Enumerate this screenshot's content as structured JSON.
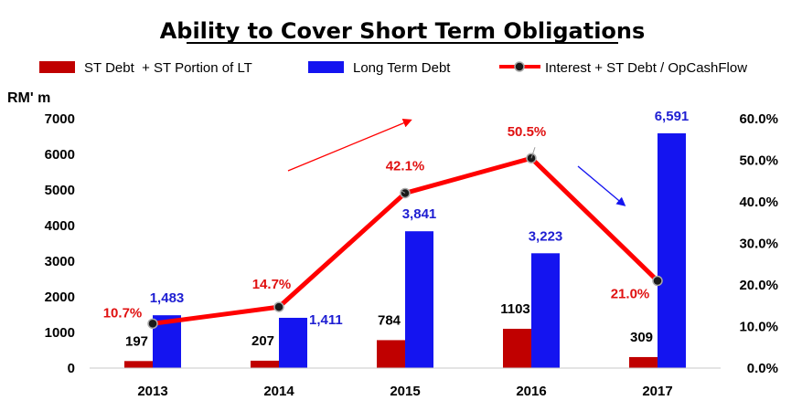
{
  "chart_data": {
    "type": "bar",
    "title": "Ability to Cover Short Term Obligations",
    "ylabel": "RM' m",
    "categories": [
      "2013",
      "2014",
      "2015",
      "2016",
      "2017"
    ],
    "ylim": [
      0,
      7000
    ],
    "yticks": [
      "0",
      "1000",
      "2000",
      "3000",
      "4000",
      "5000",
      "6000",
      "7000"
    ],
    "y2lim": [
      0,
      60
    ],
    "y2ticks": [
      "0.0%",
      "10.0%",
      "20.0%",
      "30.0%",
      "40.0%",
      "50.0%",
      "60.0%"
    ],
    "grid": false,
    "legend_position": "top",
    "series": [
      {
        "name": "ST Debt  + ST Portion of LT",
        "type": "bar",
        "color": "#C00000",
        "values": [
          197,
          207,
          784,
          1103,
          309
        ],
        "labels": [
          "197",
          "207",
          "784",
          "1103",
          "309"
        ],
        "label_color": "#000000"
      },
      {
        "name": "Long Term Debt",
        "type": "bar",
        "color": "#1414F0",
        "values": [
          1483,
          1411,
          3841,
          3223,
          6591
        ],
        "labels": [
          "1,483",
          "1,411",
          "3,841",
          "3,223",
          "6,591"
        ],
        "label_color": "#1E1ED2"
      },
      {
        "name": "Interest + ST Debt / OpCashFlow",
        "type": "line",
        "axis": "secondary",
        "color": "#FF0000",
        "values": [
          10.7,
          14.7,
          42.1,
          50.5,
          21.0
        ],
        "labels": [
          "10.7%",
          "14.7%",
          "42.1%",
          "50.5%",
          "21.0%"
        ],
        "label_color": "#E01010"
      }
    ],
    "annotations": [
      {
        "type": "arrow",
        "color": "#FF0000",
        "description": "upward trend arrow"
      },
      {
        "type": "arrow",
        "color": "#1414F0",
        "description": "downward trend arrow"
      }
    ]
  }
}
